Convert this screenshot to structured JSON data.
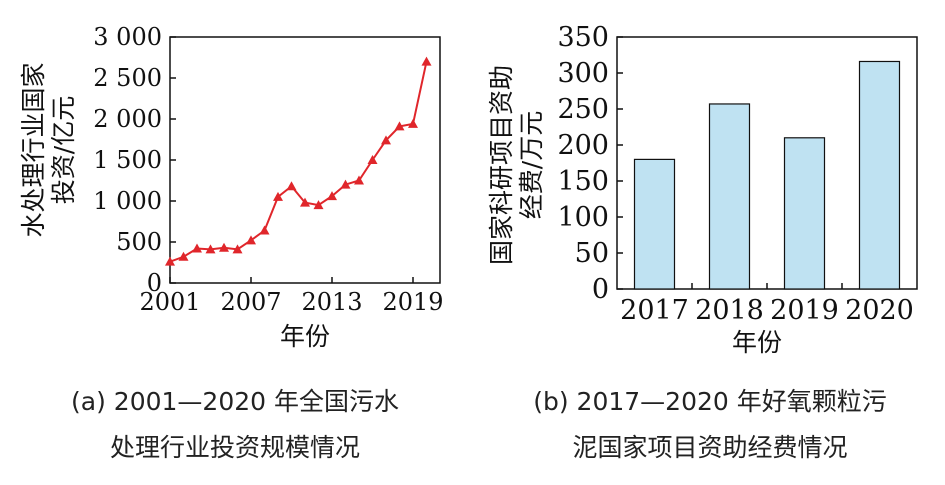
{
  "charts": [
    {
      "caption_line1": "(a) 2001—2020 年全国污水",
      "caption_line2": "处理行业投资规模情况",
      "chart_data": {
        "type": "line",
        "ylabel_line1": "水处理行业国家",
        "ylabel_line2": "投资/亿元",
        "xlabel": "年份",
        "ylim": [
          0,
          3000
        ],
        "xlim": [
          2001,
          2021
        ],
        "yticks": [
          0,
          500,
          1000,
          1500,
          2000,
          2500,
          3000
        ],
        "ytick_labels": [
          "0",
          "500",
          "1 000",
          "1 500",
          "2 000",
          "2 500",
          "3 000"
        ],
        "xticks": [
          2001,
          2007,
          2013,
          2019
        ],
        "xtick_labels": [
          "2001",
          "2007",
          "2013",
          "2019"
        ],
        "grid": false,
        "color": "#e0262b",
        "marker": "triangle",
        "x": [
          2001,
          2002,
          2003,
          2004,
          2005,
          2006,
          2007,
          2008,
          2009,
          2010,
          2011,
          2012,
          2013,
          2014,
          2015,
          2016,
          2017,
          2018,
          2019,
          2020
        ],
        "y": [
          260,
          320,
          420,
          410,
          430,
          410,
          520,
          640,
          1050,
          1180,
          980,
          950,
          1060,
          1200,
          1250,
          1500,
          1740,
          1910,
          1940,
          2700
        ]
      }
    },
    {
      "caption_line1": "(b) 2017—2020 年好氧颗粒污",
      "caption_line2": "泥国家项目资助经费情况",
      "chart_data": {
        "type": "bar",
        "ylabel_line1": "国家科研项目资助",
        "ylabel_line2": "经费/万元",
        "xlabel": "年份",
        "ylim": [
          0,
          350
        ],
        "yticks": [
          0,
          50,
          100,
          150,
          200,
          250,
          300,
          350
        ],
        "ytick_labels": [
          "0",
          "50",
          "100",
          "150",
          "200",
          "250",
          "300",
          "350"
        ],
        "categories": [
          "2017",
          "2018",
          "2019",
          "2020"
        ],
        "values": [
          180,
          257,
          210,
          316
        ],
        "grid": false,
        "color": "#bfe2f2"
      }
    }
  ]
}
